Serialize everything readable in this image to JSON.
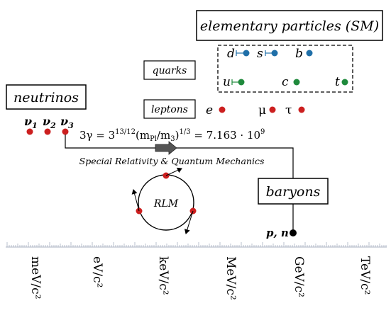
{
  "boxes": {
    "elementary": "elementary particles (SM)",
    "neutrinos": "neutrinos",
    "quarks": "quarks",
    "leptons": "leptons",
    "baryons": "baryons"
  },
  "quarks": {
    "d": "d",
    "s": "s",
    "b": "b",
    "u": "u",
    "c": "c",
    "t": "t"
  },
  "leptons": {
    "e": "e",
    "mu": "μ",
    "tau": "τ"
  },
  "neutrinos": {
    "nu1": "ν",
    "nu1_sub": "1",
    "nu2": "ν",
    "nu2_sub": "2",
    "nu3": "ν",
    "nu3_sub": "3"
  },
  "formula": {
    "lhs": "3γ = 3",
    "exp1": "13/12",
    "open": "(m",
    "sub_pl": "Pl",
    "slash": "/m",
    "sub_3": "3",
    "close": ")",
    "exp2": "1/3",
    "rhs": " = 7.163 · 10",
    "exp3": "9"
  },
  "arrow_label": "Special Relativity & Quantum Mechanics",
  "rlm_label": "RLM",
  "pn_label": "p, n",
  "axis_ticks": [
    "meV/c²",
    "eV/c²",
    "keV/c²",
    "MeV/c²",
    "GeV/c²",
    "TeV/c²"
  ],
  "colors": {
    "quark_down": "#1f6fa8",
    "quark_up": "#1f8a3c",
    "lepton": "#cc1f1f",
    "baryon": "#000000",
    "arrow_fill": "#555555"
  }
}
